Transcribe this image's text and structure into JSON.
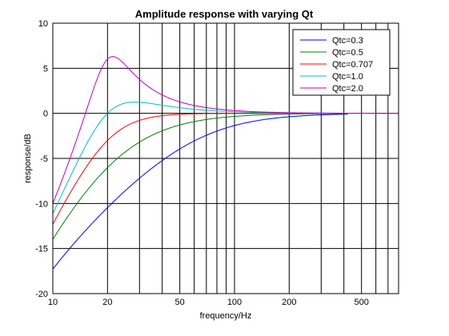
{
  "chart_data": {
    "type": "line",
    "title": "Amplitude response with varying Qt",
    "xlabel": "frequency/Hz",
    "ylabel": "response/dB",
    "x_scale": "log",
    "xlim": [
      10,
      800
    ],
    "ylim": [
      -20,
      10
    ],
    "x_tick_labels": [
      "10",
      "20",
      "50",
      "100",
      "200",
      "500"
    ],
    "x_tick_values": [
      10,
      20,
      50,
      100,
      200,
      500
    ],
    "y_tick_labels": [
      "10",
      "5",
      "0",
      "-5",
      "-10",
      "-15",
      "-20"
    ],
    "y_tick_values": [
      10,
      5,
      0,
      -5,
      -10,
      -15,
      -20
    ],
    "grid": true,
    "legend_position": "top-right",
    "resonance_hz": 20,
    "series": [
      {
        "name": "Qtc=0.3",
        "q": 0.3,
        "color": "#0000ff",
        "x_end": 420
      },
      {
        "name": "Qtc=0.5",
        "q": 0.5,
        "color": "#008000",
        "x_end": 420
      },
      {
        "name": "Qtc=0.707",
        "q": 0.707,
        "color": "#ff0000",
        "x_end": 420
      },
      {
        "name": "Qtc=1.0",
        "q": 1.0,
        "color": "#00bfbf",
        "x_end": 420
      },
      {
        "name": "Qtc=2.0",
        "q": 2.0,
        "color": "#bf00bf",
        "x_end": 800
      }
    ]
  }
}
